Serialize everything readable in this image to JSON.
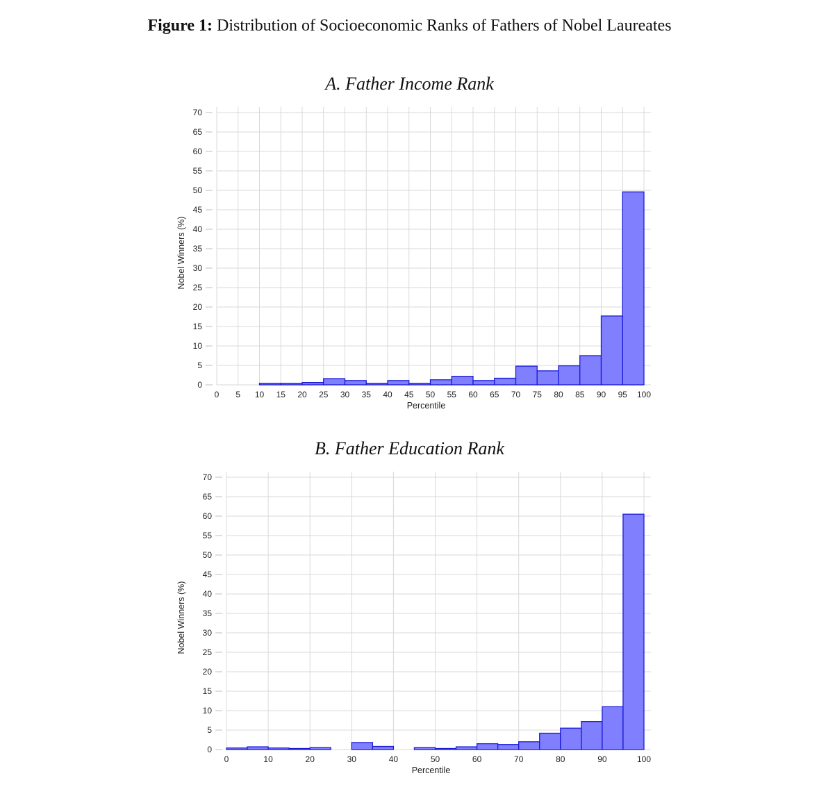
{
  "figure": {
    "label": "Figure 1:",
    "title": "Distribution of Socioeconomic Ranks of Fathers of Nobel Laureates"
  },
  "chart_data": [
    {
      "type": "bar",
      "title": "A. Father Income Rank",
      "xlabel": "Percentile",
      "ylabel": "Nobel Winners (%)",
      "xlim": [
        0,
        100
      ],
      "ylim": [
        0,
        70
      ],
      "xticks": [
        0,
        5,
        10,
        15,
        20,
        25,
        30,
        35,
        40,
        45,
        50,
        55,
        60,
        65,
        70,
        75,
        80,
        85,
        90,
        95,
        100
      ],
      "yticks": [
        0,
        5,
        10,
        15,
        20,
        25,
        30,
        35,
        40,
        45,
        50,
        55,
        60,
        65,
        70
      ],
      "grid": true,
      "color": "#8080ff",
      "bins": [
        {
          "start": 10,
          "end": 15,
          "value": 0.4
        },
        {
          "start": 15,
          "end": 20,
          "value": 0.4
        },
        {
          "start": 20,
          "end": 25,
          "value": 0.6
        },
        {
          "start": 25,
          "end": 30,
          "value": 1.6
        },
        {
          "start": 30,
          "end": 35,
          "value": 1.1
        },
        {
          "start": 35,
          "end": 40,
          "value": 0.4
        },
        {
          "start": 40,
          "end": 45,
          "value": 1.1
        },
        {
          "start": 45,
          "end": 50,
          "value": 0.4
        },
        {
          "start": 50,
          "end": 55,
          "value": 1.3
        },
        {
          "start": 55,
          "end": 60,
          "value": 2.2
        },
        {
          "start": 60,
          "end": 65,
          "value": 1.1
        },
        {
          "start": 65,
          "end": 70,
          "value": 1.7
        },
        {
          "start": 70,
          "end": 75,
          "value": 4.8
        },
        {
          "start": 75,
          "end": 80,
          "value": 3.6
        },
        {
          "start": 80,
          "end": 85,
          "value": 4.9
        },
        {
          "start": 85,
          "end": 90,
          "value": 7.5
        },
        {
          "start": 90,
          "end": 95,
          "value": 17.7
        },
        {
          "start": 95,
          "end": 100,
          "value": 49.6
        }
      ]
    },
    {
      "type": "bar",
      "title": "B. Father Education Rank",
      "xlabel": "Percentile",
      "ylabel": "Nobel Winners (%)",
      "xlim": [
        0,
        100
      ],
      "ylim": [
        0,
        70
      ],
      "xticks": [
        0,
        10,
        20,
        30,
        40,
        50,
        60,
        70,
        80,
        90,
        100
      ],
      "yticks": [
        0,
        5,
        10,
        15,
        20,
        25,
        30,
        35,
        40,
        45,
        50,
        55,
        60,
        65,
        70
      ],
      "grid": true,
      "color": "#8080ff",
      "bins": [
        {
          "start": 0,
          "end": 5,
          "value": 0.4
        },
        {
          "start": 5,
          "end": 10,
          "value": 0.7
        },
        {
          "start": 10,
          "end": 15,
          "value": 0.4
        },
        {
          "start": 15,
          "end": 20,
          "value": 0.2
        },
        {
          "start": 20,
          "end": 25,
          "value": 0.5
        },
        {
          "start": 30,
          "end": 35,
          "value": 1.8
        },
        {
          "start": 35,
          "end": 40,
          "value": 0.8
        },
        {
          "start": 45,
          "end": 50,
          "value": 0.5
        },
        {
          "start": 50,
          "end": 55,
          "value": 0.2
        },
        {
          "start": 55,
          "end": 60,
          "value": 0.7
        },
        {
          "start": 60,
          "end": 65,
          "value": 1.5
        },
        {
          "start": 65,
          "end": 70,
          "value": 1.3
        },
        {
          "start": 70,
          "end": 75,
          "value": 2.0
        },
        {
          "start": 75,
          "end": 80,
          "value": 4.2
        },
        {
          "start": 80,
          "end": 85,
          "value": 5.5
        },
        {
          "start": 85,
          "end": 90,
          "value": 7.2
        },
        {
          "start": 90,
          "end": 95,
          "value": 11.0
        },
        {
          "start": 95,
          "end": 100,
          "value": 60.5
        }
      ]
    }
  ]
}
